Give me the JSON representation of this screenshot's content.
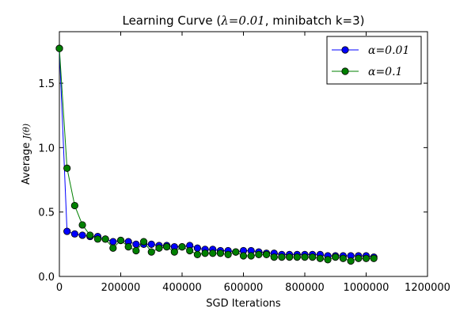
{
  "chart_data": {
    "type": "line",
    "title_prefix": "Learning Curve (",
    "title_math": "λ=0.01",
    "title_suffix": ", minibatch k=3)",
    "xlabel": "SGD Iterations",
    "ylabel_prefix": "Average ",
    "ylabel_math": "J(θ)",
    "xlim": [
      0,
      1200000
    ],
    "ylim": [
      0.0,
      1.9
    ],
    "x_ticks": [
      0,
      200000,
      400000,
      600000,
      800000,
      1000000,
      1200000
    ],
    "x_tick_labels": [
      "0",
      "200000",
      "400000",
      "600000",
      "800000",
      "1000000",
      "1200000"
    ],
    "y_ticks": [
      0.0,
      0.5,
      1.0,
      1.5
    ],
    "y_tick_labels": [
      "0.0",
      "0.5",
      "1.0",
      "1.5"
    ],
    "grid": false,
    "legend_position": "top-right",
    "x": [
      0,
      25000,
      50000,
      75000,
      100000,
      125000,
      150000,
      175000,
      200000,
      225000,
      250000,
      275000,
      300000,
      325000,
      350000,
      375000,
      400000,
      425000,
      450000,
      475000,
      500000,
      525000,
      550000,
      575000,
      600000,
      625000,
      650000,
      675000,
      700000,
      725000,
      750000,
      775000,
      800000,
      825000,
      850000,
      875000,
      900000,
      925000,
      950000,
      975000,
      1000000,
      1025000
    ],
    "series": [
      {
        "name": "α=0.01",
        "color": "#0000ff",
        "values": [
          1.77,
          0.35,
          0.33,
          0.32,
          0.31,
          0.31,
          0.29,
          0.27,
          0.28,
          0.27,
          0.25,
          0.25,
          0.25,
          0.24,
          0.24,
          0.23,
          0.23,
          0.24,
          0.22,
          0.21,
          0.21,
          0.2,
          0.2,
          0.19,
          0.2,
          0.2,
          0.19,
          0.18,
          0.18,
          0.17,
          0.17,
          0.17,
          0.17,
          0.17,
          0.17,
          0.16,
          0.16,
          0.16,
          0.16,
          0.16,
          0.16,
          0.15
        ]
      },
      {
        "name": "α=0.1",
        "color": "#008000",
        "values": [
          1.77,
          0.84,
          0.55,
          0.4,
          0.32,
          0.29,
          0.29,
          0.22,
          0.28,
          0.23,
          0.2,
          0.27,
          0.19,
          0.22,
          0.23,
          0.19,
          0.23,
          0.2,
          0.17,
          0.18,
          0.18,
          0.18,
          0.17,
          0.19,
          0.16,
          0.16,
          0.17,
          0.17,
          0.15,
          0.15,
          0.15,
          0.15,
          0.15,
          0.15,
          0.14,
          0.13,
          0.15,
          0.14,
          0.12,
          0.14,
          0.14,
          0.14
        ]
      }
    ]
  }
}
